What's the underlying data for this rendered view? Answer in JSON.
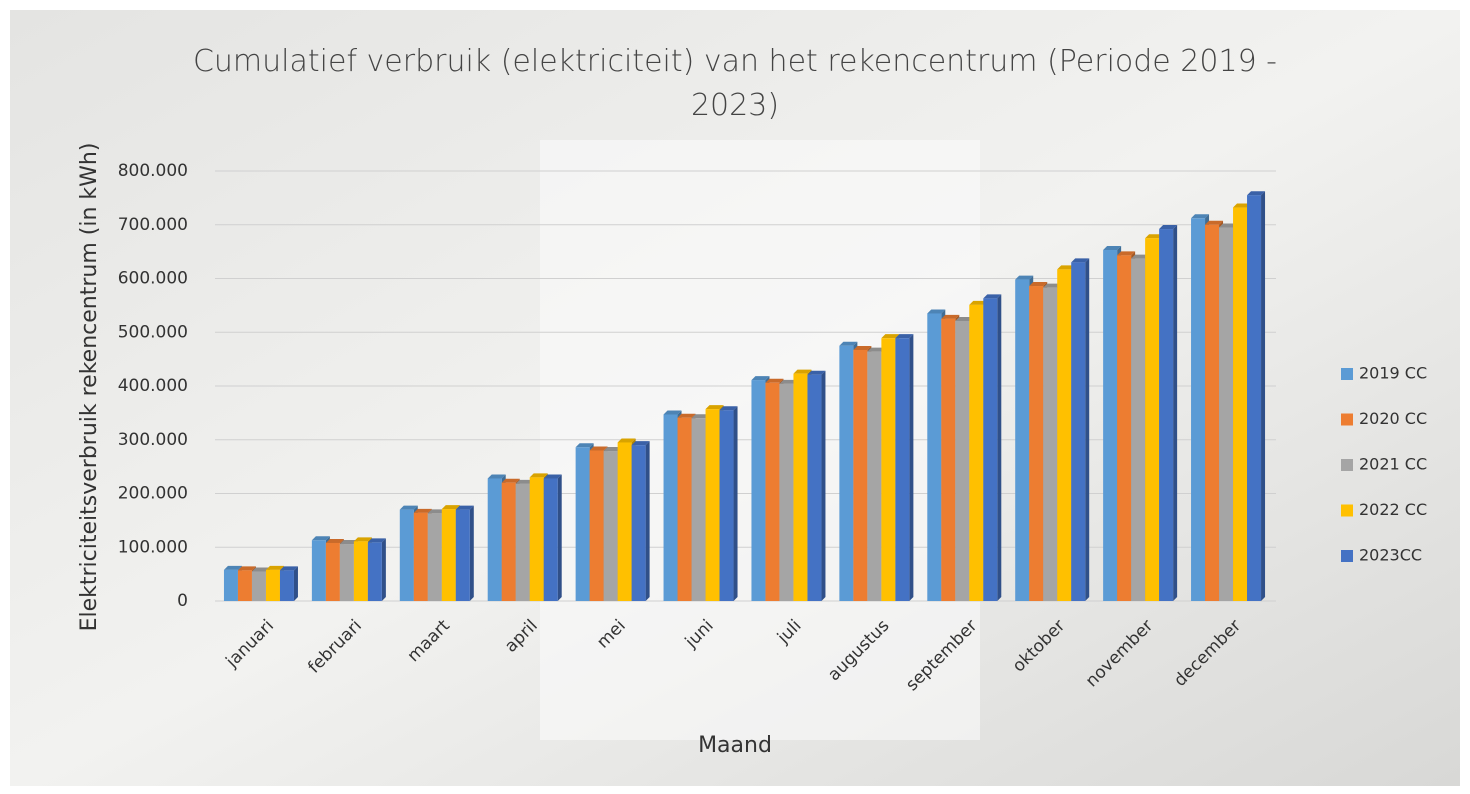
{
  "chart_data": {
    "type": "bar3d",
    "title": "Cumulatief verbruik (elektriciteit) van het rekencentrum (Periode 2019 - 2023)",
    "x_label": "Maand",
    "y_label": "Elektriciteitsverbruik rekencentrum (in kWh)",
    "categories": [
      "januari",
      "februari",
      "maart",
      "april",
      "mei",
      "juni",
      "juli",
      "augustus",
      "september",
      "oktober",
      "november",
      "december"
    ],
    "series": [
      {
        "name": "2019 CC",
        "color": "#5b9bd5",
        "values": [
          58000,
          113000,
          170000,
          228000,
          286000,
          347000,
          411000,
          475000,
          535000,
          598000,
          653000,
          712000
        ]
      },
      {
        "name": "2020 CC",
        "color": "#ed7d31",
        "values": [
          57000,
          108000,
          164000,
          220000,
          280000,
          341000,
          406000,
          467000,
          525000,
          586000,
          643000,
          700000
        ]
      },
      {
        "name": "2021 CC",
        "color": "#a5a5a5",
        "values": [
          55000,
          106000,
          163000,
          218000,
          279000,
          340000,
          404000,
          464000,
          521000,
          583000,
          637000,
          695000
        ]
      },
      {
        "name": "2022 CC",
        "color": "#ffc000",
        "values": [
          58000,
          111000,
          171000,
          230000,
          295000,
          357000,
          423000,
          489000,
          551000,
          617000,
          675000,
          732000
        ]
      },
      {
        "name": "2023CC",
        "color": "#4472c4",
        "values": [
          57000,
          109000,
          170000,
          228000,
          290000,
          355000,
          421000,
          489000,
          563000,
          630000,
          692000,
          755000
        ]
      }
    ],
    "ylim": [
      0,
      800000
    ],
    "yticks": [
      0,
      {
        "value": 100000,
        "label": "100.000"
      },
      {
        "value": 200000,
        "label": "200.000"
      },
      {
        "value": 300000,
        "label": "300.000"
      },
      {
        "value": 400000,
        "label": "400.000"
      },
      {
        "value": 500000,
        "label": "500.000"
      },
      {
        "value": 600000,
        "label": "600.000"
      },
      {
        "value": 700000,
        "label": "700.000"
      },
      {
        "value": 800000,
        "label": "800.000"
      }
    ],
    "grid": true,
    "legend": "right"
  }
}
